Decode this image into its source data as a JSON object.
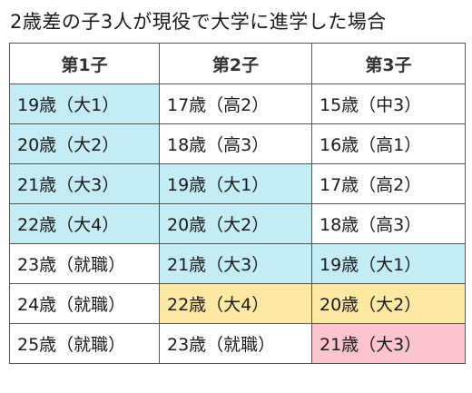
{
  "title": "2歳差の子3人が現役で大学に進学した場合",
  "colors": {
    "university": "#c3ecf4",
    "overlap_two": "#fde9a1",
    "overlap_three": "#fbc4cf",
    "default": "#ffffff"
  },
  "table": {
    "headers": [
      "第1子",
      "第2子",
      "第3子"
    ],
    "rows": [
      [
        "19歳（大1）",
        "17歳（高2）",
        "15歳（中3）"
      ],
      [
        "20歳（大2）",
        "18歳（高3）",
        "16歳（高1）"
      ],
      [
        "21歳（大3）",
        "19歳（大1）",
        "17歳（高2）"
      ],
      [
        "22歳（大4）",
        "20歳（大2）",
        "18歳（高3）"
      ],
      [
        "23歳（就職）",
        "21歳（大3）",
        "19歳（大1）"
      ],
      [
        "24歳（就職）",
        "22歳（大4）",
        "20歳（大2）"
      ],
      [
        "25歳（就職）",
        "23歳（就職）",
        "21歳（大3）"
      ]
    ]
  }
}
